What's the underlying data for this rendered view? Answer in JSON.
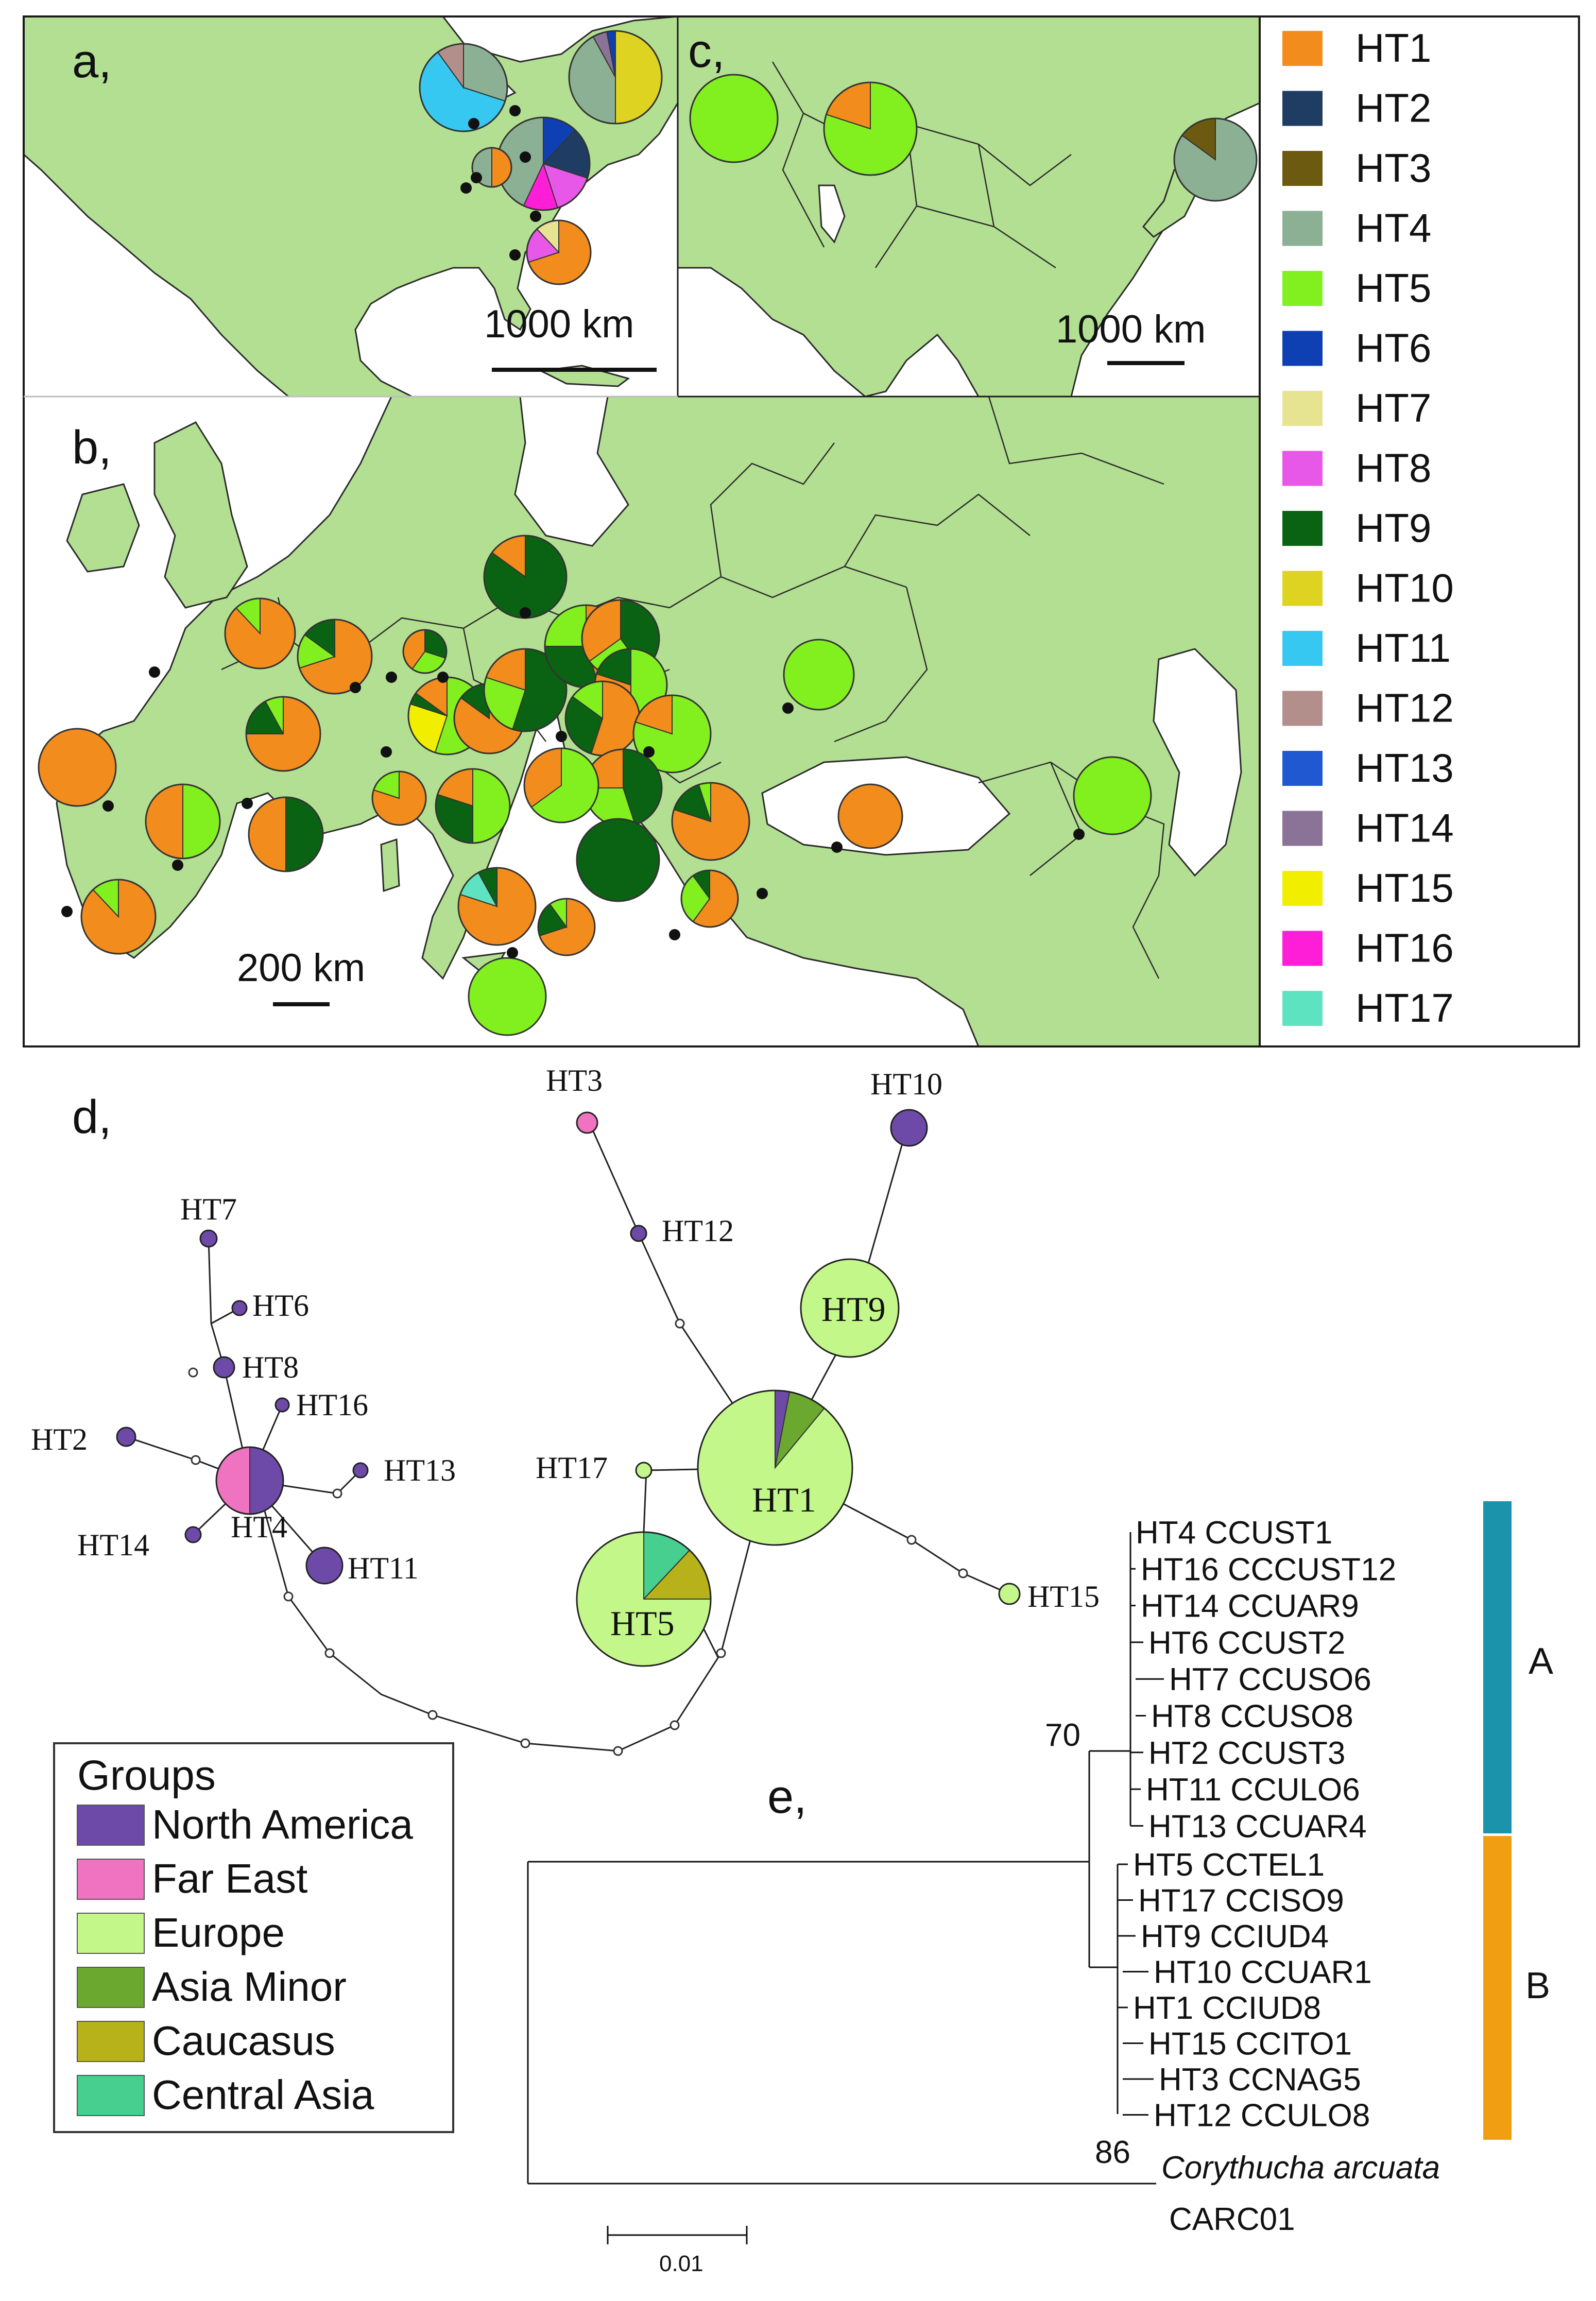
{
  "panels": {
    "a": "a,",
    "b": "b,",
    "c": "c,",
    "d": "d,",
    "e": "e,"
  },
  "scalebars": {
    "a": "1000 km",
    "c": "1000 km",
    "b": "200 km",
    "tree": "0.01"
  },
  "colors": {
    "HT1": "#f28c1c",
    "HT2": "#1f3d63",
    "HT3": "#6b5a10",
    "HT4": "#8bb093",
    "HT5": "#82f01f",
    "HT6": "#0f40b3",
    "HT7": "#e6e391",
    "HT8": "#e858e8",
    "HT9": "#0a6312",
    "HT10": "#ddd320",
    "HT11": "#36c8f0",
    "HT12": "#b38f8c",
    "HT13": "#1f58d0",
    "HT14": "#8a7396",
    "HT15": "#f2ee00",
    "HT16": "#ff1ed7",
    "HT17": "#5ee3c0",
    "land": "#b3df92",
    "sea": "#ffffff",
    "border": "#2b2b2b",
    "bar_A": "#1a93ab",
    "bar_B": "#f29e12"
  },
  "legend_haplotypes": [
    "HT1",
    "HT2",
    "HT3",
    "HT4",
    "HT5",
    "HT6",
    "HT7",
    "HT8",
    "HT9",
    "HT10",
    "HT11",
    "HT12",
    "HT13",
    "HT14",
    "HT15",
    "HT16",
    "HT17"
  ],
  "groups": {
    "title": "Groups",
    "items": [
      {
        "label": "North America",
        "color": "#6e4aa8"
      },
      {
        "label": "Far East",
        "color": "#ef73c0"
      },
      {
        "label": "Europe",
        "color": "#c4f78a"
      },
      {
        "label": "Asia Minor",
        "color": "#6ba830"
      },
      {
        "label": "Caucasus",
        "color": "#b8b21a"
      },
      {
        "label": "Central Asia",
        "color": "#47cf8f"
      }
    ]
  },
  "network_labels": [
    "HT1",
    "HT2",
    "HT3",
    "HT4",
    "HT5",
    "HT6",
    "HT7",
    "HT8",
    "HT9",
    "HT10",
    "HT11",
    "HT12",
    "HT13",
    "HT14",
    "HT15",
    "HT16",
    "HT17"
  ],
  "tree": {
    "leaves": [
      "HT4 CCUST1",
      "HT16 CCCUST12",
      "HT14 CCUAR9",
      "HT6 CCUST2",
      "HT7 CCUSO6",
      "HT8 CCUSO8",
      "HT2 CCUST3",
      "HT11 CCULO6",
      "HT13 CCUAR4",
      "HT5 CCTEL1",
      "HT17 CCISO9",
      "HT9 CCIUD4",
      "HT10 CCUAR1",
      "HT1 CCIUD8",
      "HT15 CCITO1",
      "HT3 CCNAG5",
      "HT12 CCULO8"
    ],
    "outgroup_species": "Corythucha arcuata",
    "outgroup_id": "CARC01",
    "bootstrap": [
      "70",
      "86"
    ],
    "clades": [
      "A",
      "B"
    ]
  }
}
